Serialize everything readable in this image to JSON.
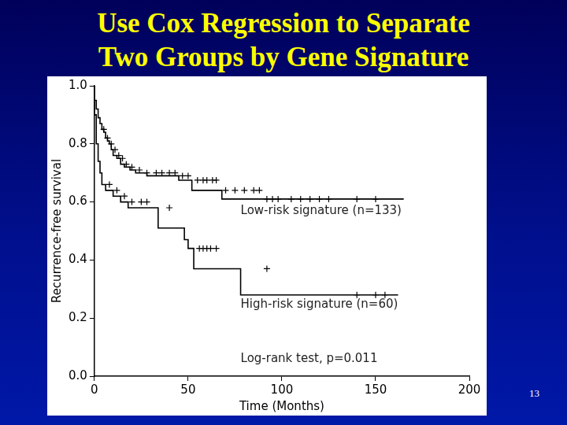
{
  "chart_data": {
    "type": "line",
    "title": [
      "Use Cox Regression to Separate",
      "Two Groups by Gene Signature"
    ],
    "x_label": "Time (Months)",
    "y_label": "Recurrence-free survival",
    "xlim": [
      0,
      200
    ],
    "xticks": [
      0,
      50,
      100,
      150,
      200
    ],
    "ylim": [
      0,
      1
    ],
    "yticks": [
      {
        "value": 0,
        "label": "0.0"
      },
      {
        "value": 0.2,
        "label": "0.2"
      },
      {
        "value": 0.4,
        "label": "0.4"
      },
      {
        "value": 0.6,
        "label": "0.6"
      },
      {
        "value": 0.8,
        "label": "0.8"
      },
      {
        "value": 1,
        "label": "1.0"
      }
    ],
    "grid": false,
    "line_style": "step",
    "series": [
      {
        "name": "Low-risk signature (n=133)",
        "color": "#000000",
        "marker": "cross",
        "x": [
          0,
          1,
          2,
          3,
          4,
          5,
          6,
          7,
          8,
          9,
          10,
          12,
          14,
          16,
          19,
          22,
          28,
          45,
          52,
          68,
          90,
          165
        ],
        "values": [
          1,
          0.95,
          0.92,
          0.89,
          0.87,
          0.85,
          0.84,
          0.82,
          0.81,
          0.8,
          0.78,
          0.76,
          0.75,
          0.73,
          0.72,
          0.71,
          0.7,
          0.69,
          0.675,
          0.64,
          0.61,
          0.61
        ],
        "censored": [
          5,
          7,
          9,
          11,
          13,
          15,
          17,
          20,
          24,
          28,
          33,
          36,
          40,
          43,
          47,
          50,
          55,
          58,
          60,
          63,
          65,
          70,
          75,
          80,
          85,
          88,
          92,
          95,
          98,
          105,
          110,
          115,
          120,
          125,
          140,
          150
        ]
      },
      {
        "name": "High-risk signature (n=60)",
        "color": "#000000",
        "marker": "cross",
        "x": [
          0,
          1,
          2,
          3,
          4,
          6,
          10,
          14,
          18,
          34,
          48,
          50,
          53,
          78,
          130,
          162
        ],
        "values": [
          1,
          0.9,
          0.8,
          0.74,
          0.7,
          0.66,
          0.64,
          0.62,
          0.6,
          0.58,
          0.51,
          0.47,
          0.44,
          0.37,
          0.28,
          0.28
        ],
        "censored": [
          8,
          12,
          16,
          20,
          25,
          28,
          40,
          56,
          58,
          60,
          62,
          65,
          92,
          140,
          150,
          155
        ]
      }
    ],
    "annotations": [
      "Log-rank test, p=0.011"
    ]
  },
  "page_number": 13
}
